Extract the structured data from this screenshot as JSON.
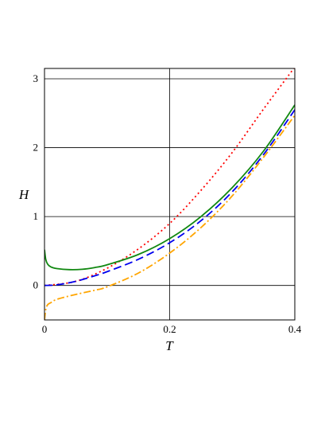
{
  "chart_data": {
    "type": "line",
    "title": "",
    "xlabel": "T",
    "ylabel": "H",
    "xlim": [
      0,
      0.4
    ],
    "ylim": [
      -0.5,
      3.15
    ],
    "grid": true,
    "x_ticks": [
      0,
      0.2,
      0.4
    ],
    "x_tick_labels": [
      "0",
      "0.2",
      "0.4"
    ],
    "y_ticks": [
      0,
      1,
      2,
      3
    ],
    "y_tick_labels": [
      "0",
      "1",
      "2",
      "3"
    ],
    "series": [
      {
        "color": "#ff0000",
        "style": "dotted",
        "x": [
          0,
          0.05,
          0.1,
          0.15,
          0.2,
          0.25,
          0.3,
          0.35,
          0.4
        ],
        "y": [
          0.0,
          0.06,
          0.25,
          0.53,
          0.9,
          1.38,
          1.93,
          2.56,
          3.17
        ]
      },
      {
        "color": "#118811",
        "style": "solid",
        "x": [
          0.0,
          0.002,
          0.005,
          0.01,
          0.02,
          0.04,
          0.06,
          0.08,
          0.1,
          0.15,
          0.2,
          0.25,
          0.3,
          0.35,
          0.4
        ],
        "y": [
          0.52,
          0.38,
          0.31,
          0.27,
          0.245,
          0.23,
          0.235,
          0.26,
          0.3,
          0.45,
          0.68,
          1.0,
          1.42,
          1.95,
          2.62
        ]
      },
      {
        "color": "#0000ee",
        "style": "dashed",
        "x": [
          0.0,
          0.02,
          0.05,
          0.08,
          0.1,
          0.15,
          0.2,
          0.25,
          0.3,
          0.35,
          0.4
        ],
        "y": [
          0.0,
          0.01,
          0.06,
          0.14,
          0.2,
          0.38,
          0.62,
          0.94,
          1.36,
          1.9,
          2.55
        ]
      },
      {
        "color": "#ffa500",
        "style": "dashdot",
        "x": [
          0.0,
          0.002,
          0.005,
          0.01,
          0.02,
          0.05,
          0.08,
          0.1,
          0.15,
          0.2,
          0.25,
          0.3,
          0.35,
          0.4
        ],
        "y": [
          -0.5,
          -0.35,
          -0.28,
          -0.25,
          -0.2,
          -0.13,
          -0.07,
          -0.02,
          0.18,
          0.47,
          0.84,
          1.3,
          1.86,
          2.47
        ]
      }
    ]
  }
}
